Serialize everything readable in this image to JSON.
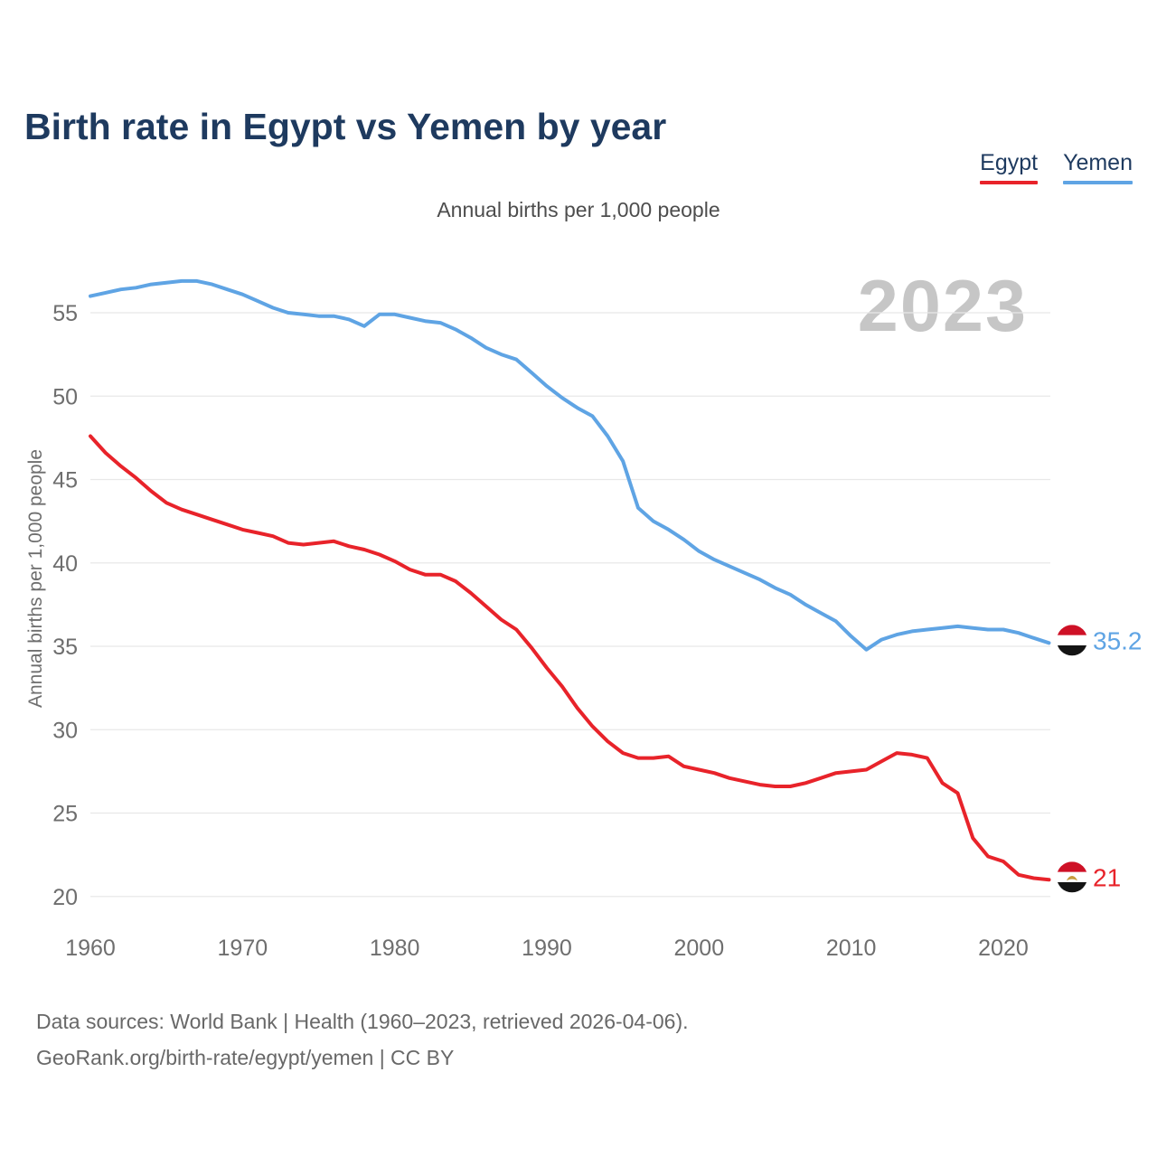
{
  "title": "Birth rate in Egypt vs Yemen by year",
  "subtitle": "Annual births per 1,000 people",
  "watermark": "2023",
  "legend": {
    "items": [
      {
        "label": "Egypt",
        "color": "#e8232a"
      },
      {
        "label": "Yemen",
        "color": "#5fa4e4"
      }
    ]
  },
  "chart_data": {
    "type": "line",
    "title": "Birth rate in Egypt vs Yemen by year",
    "xlabel": "",
    "ylabel": "Annual births per 1,000 people",
    "x_start_year": 1960,
    "x_end_year": 2023,
    "x_ticks": [
      1960,
      1970,
      1980,
      1990,
      2000,
      2010,
      2020
    ],
    "y_ticks": [
      20,
      25,
      30,
      35,
      40,
      45,
      50,
      55
    ],
    "ylim": [
      20,
      57.5
    ],
    "grid": true,
    "legend_position": "top-right",
    "series": [
      {
        "name": "Yemen",
        "color": "#5fa4e4",
        "end_label": "35.2",
        "flag": "yemen",
        "values": [
          56.0,
          56.2,
          56.4,
          56.5,
          56.7,
          56.8,
          56.9,
          56.9,
          56.7,
          56.4,
          56.1,
          55.7,
          55.3,
          55.0,
          54.9,
          54.8,
          54.8,
          54.6,
          54.2,
          54.9,
          54.9,
          54.7,
          54.5,
          54.4,
          54.0,
          53.5,
          52.9,
          52.5,
          52.2,
          51.4,
          50.6,
          49.9,
          49.3,
          48.8,
          47.6,
          46.1,
          43.3,
          42.5,
          42.0,
          41.4,
          40.7,
          40.2,
          39.8,
          39.4,
          39.0,
          38.5,
          38.1,
          37.5,
          37.0,
          36.5,
          35.6,
          34.8,
          35.4,
          35.7,
          35.9,
          36.0,
          36.1,
          36.2,
          36.1,
          36.0,
          36.0,
          35.8,
          35.5,
          35.2
        ]
      },
      {
        "name": "Egypt",
        "color": "#e8232a",
        "end_label": "21",
        "flag": "egypt",
        "values": [
          47.6,
          46.6,
          45.8,
          45.1,
          44.3,
          43.6,
          43.2,
          42.9,
          42.6,
          42.3,
          42.0,
          41.8,
          41.6,
          41.2,
          41.1,
          41.2,
          41.3,
          41.0,
          40.8,
          40.5,
          40.1,
          39.6,
          39.3,
          39.3,
          38.9,
          38.2,
          37.4,
          36.6,
          36.0,
          34.9,
          33.7,
          32.6,
          31.3,
          30.2,
          29.3,
          28.6,
          28.3,
          28.3,
          28.4,
          27.8,
          27.6,
          27.4,
          27.1,
          26.9,
          26.7,
          26.6,
          26.6,
          26.8,
          27.1,
          27.4,
          27.5,
          27.6,
          28.1,
          28.6,
          28.5,
          28.3,
          26.8,
          26.2,
          23.5,
          22.4,
          22.1,
          21.3,
          21.1,
          21.0
        ]
      }
    ]
  },
  "flags": {
    "yemen": {
      "stripes": [
        "#ce1126",
        "#ffffff",
        "#141414"
      ]
    },
    "egypt": {
      "stripes": [
        "#ce1126",
        "#ffffff",
        "#141414"
      ],
      "emblem": "#c69c3e"
    }
  },
  "colors": {
    "grid": "#e8e8e8",
    "tick_text": "#6e6e6e",
    "title_text": "#1e3a5f",
    "watermark": "#c6c6c6"
  },
  "footer": {
    "line1": "Data sources: World Bank | Health (1960–2023, retrieved 2026-04-06).",
    "line2": "GeoRank.org/birth-rate/egypt/yemen | CC BY"
  }
}
